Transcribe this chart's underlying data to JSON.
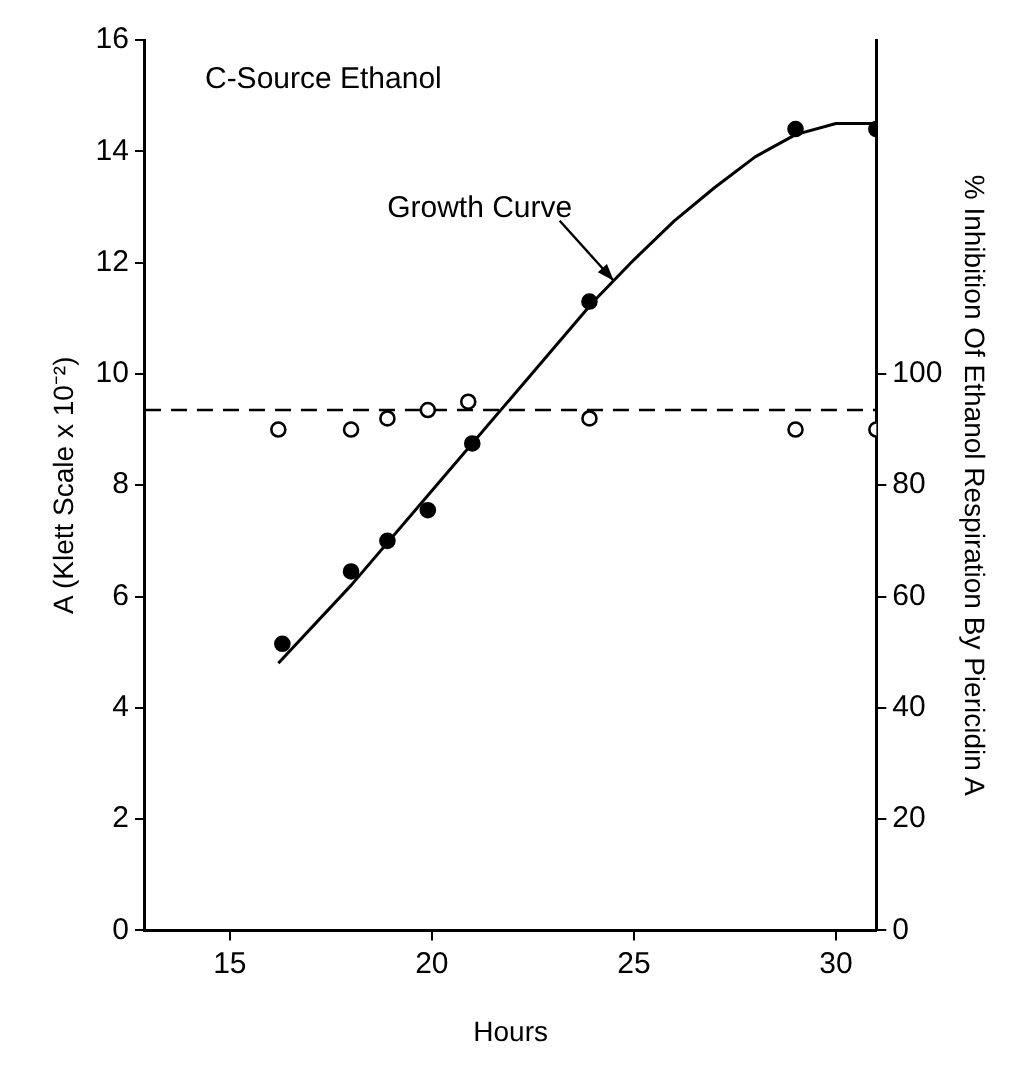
{
  "chart_data": {
    "type": "scatter",
    "xlabel": "Hours",
    "ylabel": "A (Klett Scale x 10⁻²)",
    "y2label": "% Inhibition Of Ethanol Respiration By Piericidin A",
    "xlim": [
      12.9,
      31
    ],
    "xticks": [
      15,
      20,
      25,
      30
    ],
    "ylim": [
      0,
      16
    ],
    "yticks": [
      0,
      2,
      4,
      6,
      8,
      10,
      12,
      14,
      16
    ],
    "y2lim": [
      0,
      160
    ],
    "y2ticks": [
      0,
      20,
      40,
      60,
      80,
      100
    ],
    "grid": false,
    "legend": false,
    "marker": "circle",
    "series": [
      {
        "color": "#000000",
        "x": [
          16.3,
          18.0,
          18.9,
          19.9,
          21.0,
          23.9,
          29.0,
          31.0
        ],
        "values": [
          5.15,
          6.45,
          7.0,
          7.55,
          8.75,
          11.3,
          14.4,
          14.4
        ]
      },
      {
        "type": "line",
        "color": "#000000",
        "marker": "none",
        "line_style": "solid",
        "x": [
          16.2,
          18.0,
          20.0,
          22.0,
          24.0,
          25.0,
          26.0,
          27.0,
          28.0,
          29.0,
          30.0,
          31.0
        ],
        "values": [
          4.8,
          6.2,
          7.9,
          9.6,
          11.3,
          12.05,
          12.75,
          13.35,
          13.9,
          14.3,
          14.5,
          14.5
        ]
      },
      {
        "axis": "y2",
        "color": "#000000",
        "x": [
          16.2,
          18.0,
          18.9,
          19.9,
          20.9,
          23.9,
          29.0,
          31.0
        ],
        "values": [
          90,
          90,
          92,
          93.5,
          95,
          92,
          90,
          90
        ]
      }
    ],
    "ref_lines": [
      {
        "axis": "y2",
        "value": 93.5,
        "line_style": "dashed",
        "color": "#000000"
      }
    ],
    "annotations": [
      "C-Source Ethanol",
      {
        "text": "Growth Curve",
        "x": 24.5,
        "y": 11.675
      }
    ]
  }
}
